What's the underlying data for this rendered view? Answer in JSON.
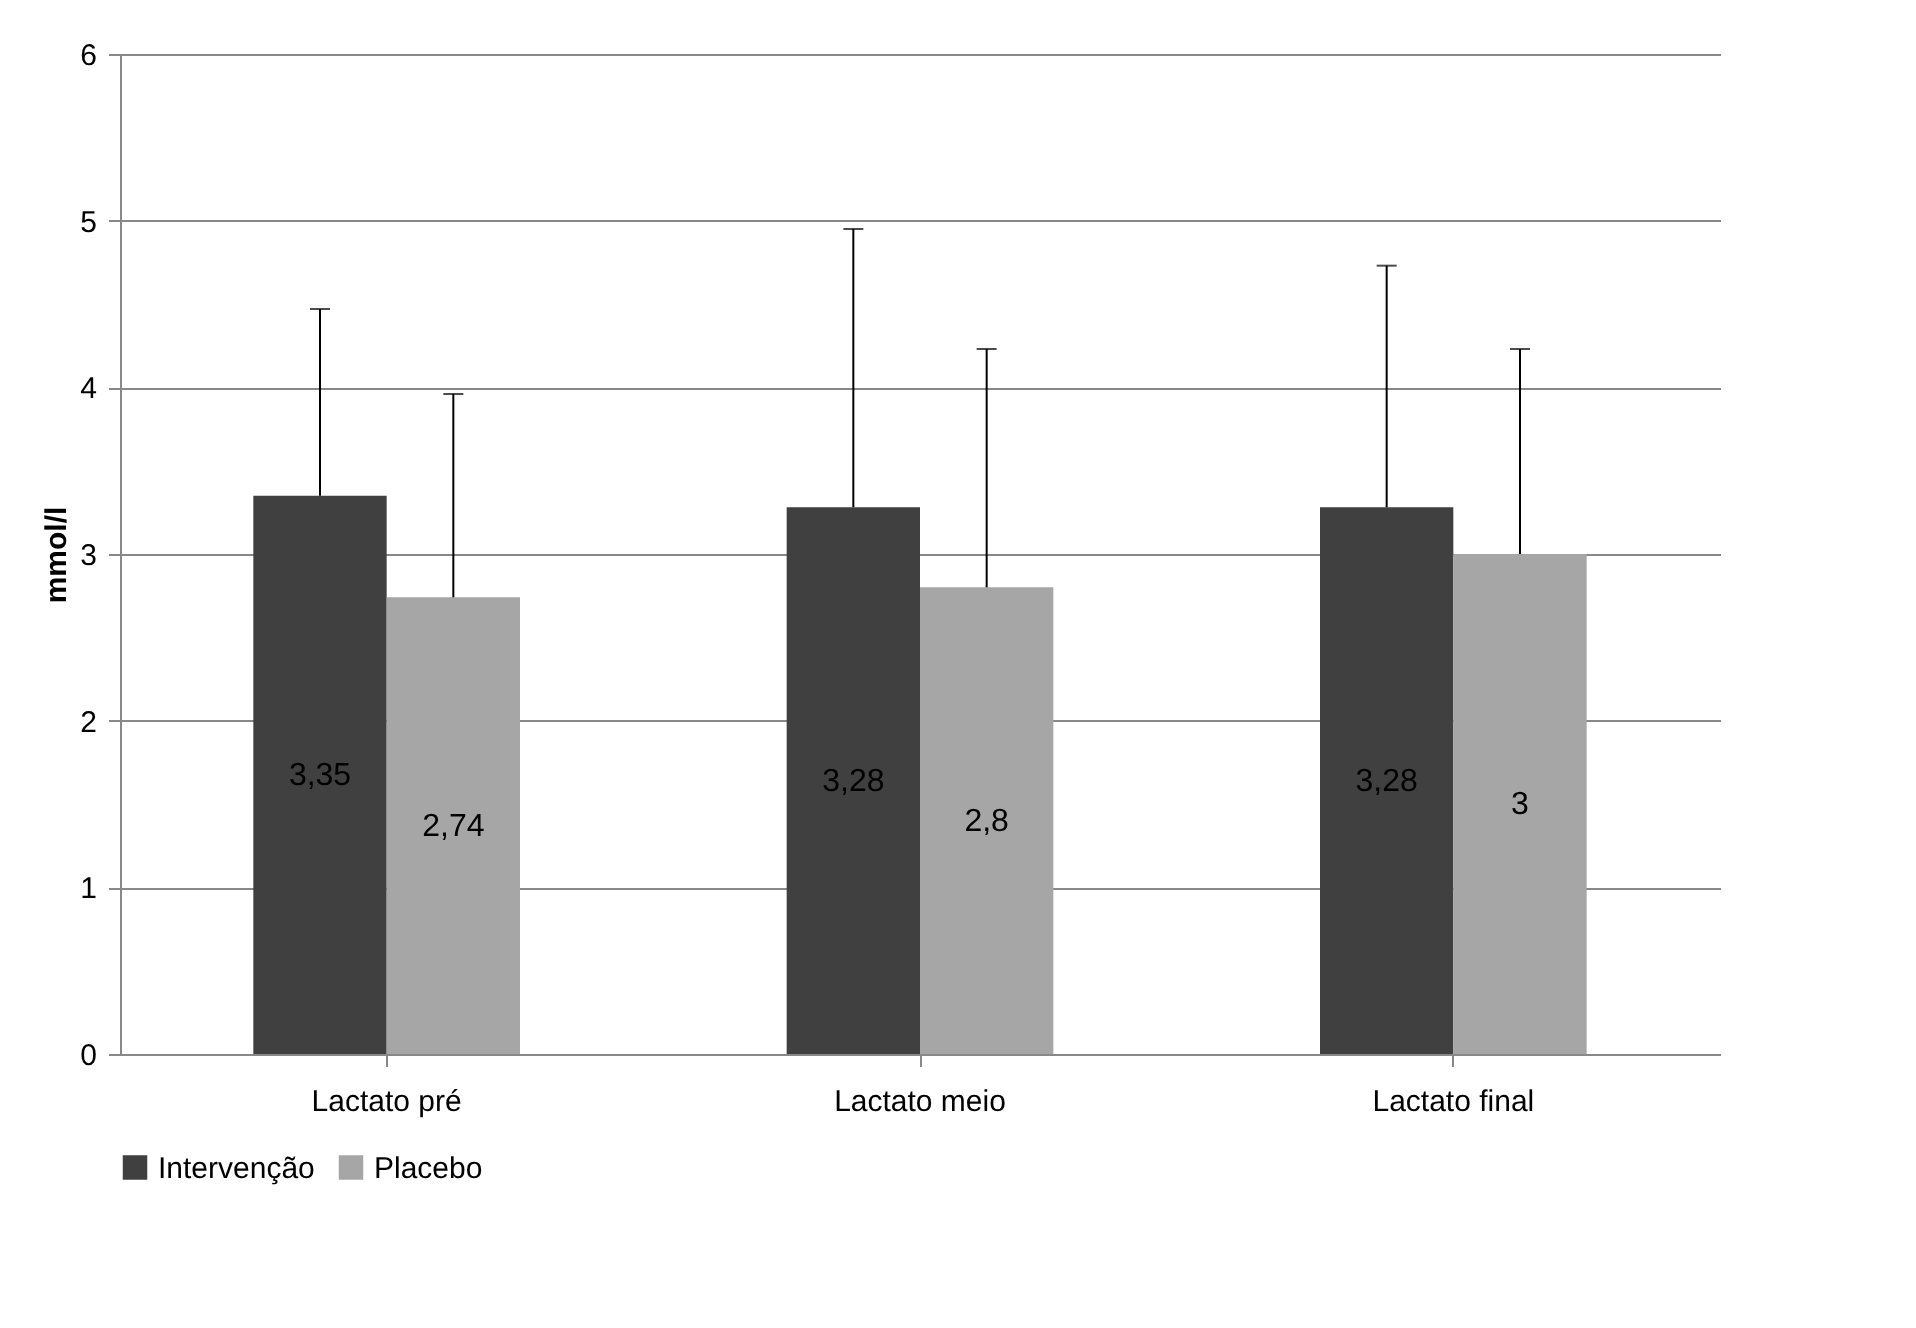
{
  "chart_data": {
    "type": "bar",
    "ylabel": "mmol/l",
    "categories": [
      "Lactato pré",
      "Lactato meio",
      "Lactato final"
    ],
    "series": [
      {
        "name": "Intervenção",
        "color": "#404040",
        "values": [
          3.35,
          3.28,
          3.28
        ],
        "value_labels": [
          "3,35",
          "3,28",
          "3,28"
        ],
        "errors": [
          [
            3.35,
            4.47
          ],
          [
            3.28,
            4.95
          ],
          [
            3.28,
            4.73
          ]
        ]
      },
      {
        "name": "Placebo",
        "color": "#a6a6a6",
        "values": [
          2.74,
          2.8,
          3
        ],
        "value_labels": [
          "2,74",
          "2,8",
          "3"
        ],
        "errors": [
          [
            2.74,
            3.96
          ],
          [
            2.8,
            4.23
          ],
          [
            3,
            4.23
          ]
        ]
      }
    ],
    "ylim": [
      0,
      6
    ],
    "yticks": [
      0,
      1,
      2,
      3,
      4,
      5,
      6
    ],
    "grid": "y",
    "legend": "bottom"
  }
}
